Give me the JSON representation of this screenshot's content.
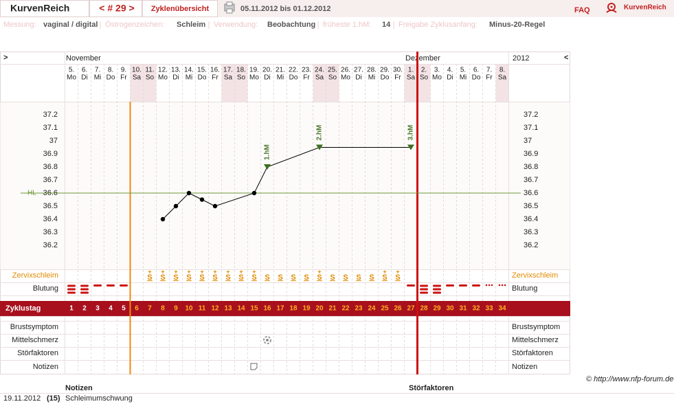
{
  "header": {
    "brand": "KurvenReich",
    "cycle_nav": "< # 29 >",
    "overview": "Zyklenübersicht",
    "range": "05.11.2012 bis 01.12.2012",
    "faq": "FAQ",
    "logo": "KurvenReich"
  },
  "info": [
    {
      "label": "Messung:",
      "value": "vaginal / digital"
    },
    {
      "label": "Östrogenzeichen:",
      "value": "Schleim"
    },
    {
      "label": "Verwendung:",
      "value": "Beobachtung"
    },
    {
      "label": "früheste 1.hM:",
      "value": "14"
    },
    {
      "label": "Freigabe Zyklusanfang:",
      "value": "Minus-20-Regel"
    }
  ],
  "chart_data": {
    "type": "line",
    "nav_prev": ">",
    "nav_next": "<",
    "months": [
      "November",
      "Dezember"
    ],
    "year": "2012",
    "days": [
      {
        "date": "5.",
        "weekday": "Mo"
      },
      {
        "date": "6.",
        "weekday": "Di"
      },
      {
        "date": "7.",
        "weekday": "Mi"
      },
      {
        "date": "8.",
        "weekday": "Do"
      },
      {
        "date": "9.",
        "weekday": "Fr"
      },
      {
        "date": "10.",
        "weekday": "Sa",
        "weekend": true
      },
      {
        "date": "11.",
        "weekday": "So",
        "weekend": true
      },
      {
        "date": "12.",
        "weekday": "Mo"
      },
      {
        "date": "13.",
        "weekday": "Di"
      },
      {
        "date": "14.",
        "weekday": "Mi"
      },
      {
        "date": "15.",
        "weekday": "Do"
      },
      {
        "date": "16.",
        "weekday": "Fr"
      },
      {
        "date": "17.",
        "weekday": "Sa",
        "weekend": true
      },
      {
        "date": "18.",
        "weekday": "So",
        "weekend": true
      },
      {
        "date": "19.",
        "weekday": "Mo"
      },
      {
        "date": "20.",
        "weekday": "Di"
      },
      {
        "date": "21.",
        "weekday": "Mi"
      },
      {
        "date": "22.",
        "weekday": "Do"
      },
      {
        "date": "23.",
        "weekday": "Fr"
      },
      {
        "date": "24.",
        "weekday": "Sa",
        "weekend": true
      },
      {
        "date": "25.",
        "weekday": "So",
        "weekend": true
      },
      {
        "date": "26.",
        "weekday": "Mo"
      },
      {
        "date": "27.",
        "weekday": "Di"
      },
      {
        "date": "28.",
        "weekday": "Mi"
      },
      {
        "date": "29.",
        "weekday": "Do"
      },
      {
        "date": "30.",
        "weekday": "Fr"
      },
      {
        "date": "1.",
        "weekday": "Sa",
        "weekend": true
      },
      {
        "date": "2.",
        "weekday": "So",
        "weekend": true
      },
      {
        "date": "3.",
        "weekday": "Mo"
      },
      {
        "date": "4.",
        "weekday": "Di"
      },
      {
        "date": "5.",
        "weekday": "Mi"
      },
      {
        "date": "6.",
        "weekday": "Do"
      },
      {
        "date": "7.",
        "weekday": "Fr"
      },
      {
        "date": "8.",
        "weekday": "Sa",
        "weekend": true
      }
    ],
    "x_label": "Zyklustag",
    "xlim": [
      0.5,
      34.5
    ],
    "xticks": [
      1,
      2,
      3,
      4,
      5,
      6,
      7,
      8,
      9,
      10,
      11,
      12,
      13,
      14,
      15,
      16,
      17,
      18,
      19,
      20,
      21,
      22,
      23,
      24,
      25,
      26,
      27,
      28,
      29,
      30,
      31,
      32,
      33,
      34
    ],
    "ylim": [
      36.2,
      37.2
    ],
    "yticks": [
      36.2,
      36.3,
      36.4,
      36.5,
      36.6,
      36.7,
      36.8,
      36.9,
      37,
      37.1,
      37.2
    ],
    "x": [
      8,
      9,
      10,
      11,
      12,
      15,
      16,
      20,
      27
    ],
    "values": [
      36.4,
      36.5,
      36.6,
      36.55,
      36.5,
      36.6,
      36.8,
      36.95,
      36.95
    ],
    "color": "#000000",
    "coverline": {
      "label": "HL",
      "value": 36.6,
      "color": "#6a9a3a"
    },
    "annotations": [
      {
        "label": "1.hM",
        "x": 16,
        "y": 36.8
      },
      {
        "label": "2.hM",
        "x": 20,
        "y": 36.95
      },
      {
        "label": "3.hM",
        "x": 27,
        "y": 36.95
      }
    ],
    "cervical_mucus": [
      null,
      null,
      null,
      null,
      null,
      null,
      {
        "symbol": "S",
        "mark": "+"
      },
      {
        "symbol": "S",
        "mark": "+"
      },
      {
        "symbol": "S",
        "mark": "+"
      },
      {
        "symbol": "S",
        "mark": "+"
      },
      {
        "symbol": "S",
        "mark": "+"
      },
      {
        "symbol": "S",
        "mark": "+"
      },
      {
        "symbol": "S",
        "mark": "+"
      },
      {
        "symbol": "S",
        "mark": "+"
      },
      {
        "symbol": "S",
        "mark": "+"
      },
      {
        "symbol": "S"
      },
      {
        "symbol": "S"
      },
      {
        "symbol": "S"
      },
      {
        "symbol": "S"
      },
      {
        "symbol": "S",
        "mark": "+"
      },
      {
        "symbol": "S"
      },
      {
        "symbol": "S"
      },
      {
        "symbol": "S"
      },
      {
        "symbol": "S"
      },
      {
        "symbol": "S",
        "mark": "+"
      },
      {
        "symbol": "S",
        "mark": "+"
      },
      null,
      null,
      null,
      null,
      null,
      null,
      null,
      null
    ],
    "rows": {
      "mucus": "Zervixschleim",
      "bleeding": "Blutung",
      "breast": "Brustsymptom",
      "pain": "Mittelschmerz",
      "disturb": "Störfaktoren",
      "notes": "Notizen"
    }
  },
  "footer": {
    "copyright": "© http://www.nfp-forum.de",
    "notes_head": "Notizen",
    "disturb_head": "Störfaktoren",
    "notes": [
      {
        "date": "19.11.2012",
        "day": "(15)",
        "text": "Schleimumschwung"
      }
    ]
  }
}
